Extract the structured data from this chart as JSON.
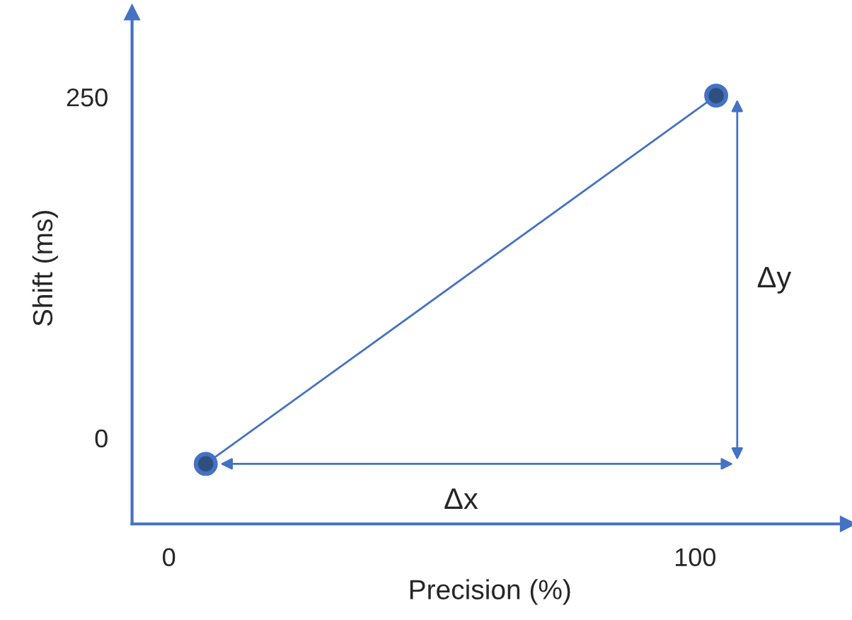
{
  "chart_data": {
    "type": "line",
    "xlabel": "Precision (%)",
    "ylabel": "Shift (ms)",
    "series": [
      {
        "x": [
          7,
          104
        ],
        "values": [
          -19,
          251
        ],
        "color": "#4472c4"
      }
    ],
    "marker": "circle",
    "xlim": [
      -7,
      129
    ],
    "ylim": [
      -63,
      312
    ],
    "xticks": [
      0,
      100
    ],
    "yticks": [
      0,
      250
    ],
    "annotations": [
      "Δx",
      "Δy"
    ],
    "grid": false,
    "legend": false
  }
}
